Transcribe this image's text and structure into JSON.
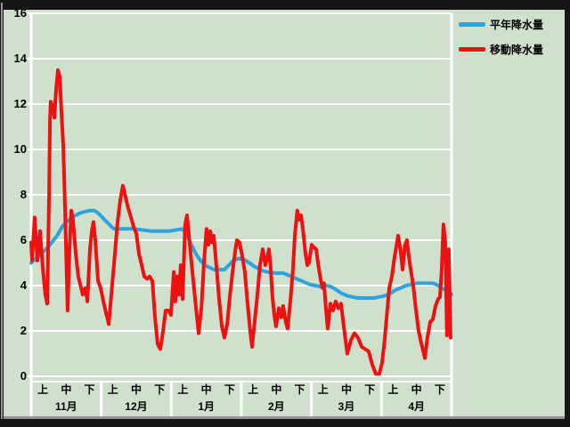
{
  "chart_data": {
    "type": "line",
    "title": "",
    "xlabel": "",
    "ylabel": "",
    "ylim": [
      0,
      16
    ],
    "y_ticks": [
      0,
      2,
      4,
      6,
      8,
      10,
      12,
      14,
      16
    ],
    "grid": "horizontal-white",
    "legend_position": "top-right",
    "x_span_days": 181,
    "periods": [
      "上",
      "中",
      "下"
    ],
    "months": [
      {
        "label": "11月"
      },
      {
        "label": "12月"
      },
      {
        "label": "1月"
      },
      {
        "label": "2月"
      },
      {
        "label": "3月"
      },
      {
        "label": "4月"
      }
    ],
    "series": [
      {
        "name": "平年降水量",
        "color": "#2fa3db",
        "points": [
          [
            0,
            5.0
          ],
          [
            1.9,
            5.2
          ],
          [
            3.8,
            5.35
          ],
          [
            5.8,
            5.55
          ],
          [
            7.7,
            5.75
          ],
          [
            9.6,
            6.0
          ],
          [
            11.5,
            6.25
          ],
          [
            13.4,
            6.6
          ],
          [
            15.3,
            6.8
          ],
          [
            17.3,
            7.0
          ],
          [
            19.2,
            7.1
          ],
          [
            21.1,
            7.2
          ],
          [
            23,
            7.25
          ],
          [
            24.9,
            7.3
          ],
          [
            27.2,
            7.3
          ],
          [
            28.8,
            7.2
          ],
          [
            30.7,
            7.0
          ],
          [
            32.6,
            6.8
          ],
          [
            34.5,
            6.6
          ],
          [
            35.7,
            6.5
          ],
          [
            40.3,
            6.5
          ],
          [
            44.1,
            6.5
          ],
          [
            47.9,
            6.45
          ],
          [
            51.8,
            6.4
          ],
          [
            55.6,
            6.4
          ],
          [
            59.4,
            6.4
          ],
          [
            62.5,
            6.45
          ],
          [
            65.2,
            6.5
          ],
          [
            67.1,
            6.2
          ],
          [
            69,
            5.8
          ],
          [
            70.9,
            5.4
          ],
          [
            72.9,
            5.1
          ],
          [
            74.8,
            4.9
          ],
          [
            76.7,
            4.8
          ],
          [
            78.6,
            4.7
          ],
          [
            80.9,
            4.7
          ],
          [
            83.2,
            4.7
          ],
          [
            85.1,
            4.9
          ],
          [
            87,
            5.1
          ],
          [
            89.3,
            5.2
          ],
          [
            91.6,
            5.15
          ],
          [
            93.9,
            5.0
          ],
          [
            95.9,
            4.85
          ],
          [
            97.8,
            4.75
          ],
          [
            99.7,
            4.65
          ],
          [
            101.6,
            4.6
          ],
          [
            105.4,
            4.55
          ],
          [
            108.5,
            4.55
          ],
          [
            110.8,
            4.45
          ],
          [
            113.1,
            4.35
          ],
          [
            115.4,
            4.25
          ],
          [
            117.7,
            4.15
          ],
          [
            120,
            4.05
          ],
          [
            122.3,
            4.0
          ],
          [
            124.6,
            3.95
          ],
          [
            126.9,
            4.0
          ],
          [
            129.2,
            3.95
          ],
          [
            131.5,
            3.8
          ],
          [
            133.8,
            3.65
          ],
          [
            136.1,
            3.55
          ],
          [
            138.4,
            3.5
          ],
          [
            140.7,
            3.45
          ],
          [
            145.3,
            3.45
          ],
          [
            147.6,
            3.45
          ],
          [
            149.9,
            3.5
          ],
          [
            152.2,
            3.55
          ],
          [
            154.5,
            3.65
          ],
          [
            156.8,
            3.8
          ],
          [
            159.1,
            3.9
          ],
          [
            161.4,
            4.0
          ],
          [
            163.7,
            4.05
          ],
          [
            166,
            4.1
          ],
          [
            170.6,
            4.1
          ],
          [
            172.9,
            4.1
          ],
          [
            174.4,
            4.05
          ],
          [
            176,
            3.95
          ],
          [
            177.5,
            3.85
          ],
          [
            179,
            3.75
          ],
          [
            180.6,
            3.65
          ],
          [
            181,
            3.6
          ]
        ]
      },
      {
        "name": "移動降水量",
        "color": "#ee1111",
        "points": [
          [
            0,
            5.9
          ],
          [
            0.4,
            5.1
          ],
          [
            1.5,
            7.0
          ],
          [
            2.7,
            5.1
          ],
          [
            3.8,
            6.4
          ],
          [
            5,
            4.8
          ],
          [
            6.1,
            3.6
          ],
          [
            6.9,
            3.2
          ],
          [
            7.7,
            8.0
          ],
          [
            8.1,
            11.3
          ],
          [
            8.4,
            12.1
          ],
          [
            9.2,
            11.9
          ],
          [
            10,
            11.4
          ],
          [
            10.7,
            12.6
          ],
          [
            11.5,
            13.5
          ],
          [
            12.3,
            13.2
          ],
          [
            13,
            11.7
          ],
          [
            13.8,
            10.2
          ],
          [
            14.6,
            7.3
          ],
          [
            15.7,
            2.9
          ],
          [
            16.5,
            5.6
          ],
          [
            17.3,
            7.3
          ],
          [
            18,
            6.9
          ],
          [
            19.2,
            5.4
          ],
          [
            20.3,
            4.4
          ],
          [
            21.5,
            3.9
          ],
          [
            22.2,
            3.6
          ],
          [
            23.4,
            3.9
          ],
          [
            24.2,
            3.3
          ],
          [
            25.3,
            5.6
          ],
          [
            26.1,
            6.4
          ],
          [
            26.8,
            6.8
          ],
          [
            27.6,
            6.0
          ],
          [
            28.8,
            4.2
          ],
          [
            29.9,
            3.9
          ],
          [
            31.1,
            3.3
          ],
          [
            32.2,
            2.8
          ],
          [
            33.4,
            2.3
          ],
          [
            34.5,
            3.6
          ],
          [
            35.7,
            5.0
          ],
          [
            37.2,
            6.8
          ],
          [
            38.4,
            7.8
          ],
          [
            39.5,
            8.4
          ],
          [
            40.6,
            7.9
          ],
          [
            41.8,
            7.4
          ],
          [
            43,
            7.0
          ],
          [
            44.1,
            6.6
          ],
          [
            45.3,
            6.3
          ],
          [
            46.4,
            5.4
          ],
          [
            47.6,
            4.9
          ],
          [
            48.7,
            4.4
          ],
          [
            49.9,
            4.3
          ],
          [
            51,
            4.4
          ],
          [
            52.2,
            4.2
          ],
          [
            53.3,
            2.6
          ],
          [
            54.5,
            1.4
          ],
          [
            55.6,
            1.2
          ],
          [
            56.8,
            2.0
          ],
          [
            57.9,
            2.9
          ],
          [
            59.1,
            2.9
          ],
          [
            60.2,
            2.7
          ],
          [
            61.4,
            4.6
          ],
          [
            62.1,
            3.3
          ],
          [
            62.9,
            4.4
          ],
          [
            63.7,
            3.6
          ],
          [
            64.4,
            4.9
          ],
          [
            65.2,
            3.4
          ],
          [
            66.3,
            6.7
          ],
          [
            67.1,
            7.1
          ],
          [
            68.3,
            5.8
          ],
          [
            69.4,
            4.6
          ],
          [
            70.6,
            3.4
          ],
          [
            72.1,
            1.9
          ],
          [
            73.3,
            3.0
          ],
          [
            74.4,
            5.0
          ],
          [
            75.5,
            6.5
          ],
          [
            76.3,
            5.8
          ],
          [
            77.1,
            6.4
          ],
          [
            77.8,
            5.9
          ],
          [
            78.6,
            6.2
          ],
          [
            79.8,
            4.8
          ],
          [
            80.9,
            3.4
          ],
          [
            82.1,
            2.2
          ],
          [
            83.2,
            1.7
          ],
          [
            84.4,
            2.3
          ],
          [
            85.5,
            3.5
          ],
          [
            86.7,
            4.6
          ],
          [
            87.8,
            5.5
          ],
          [
            88.6,
            6.0
          ],
          [
            89.7,
            5.9
          ],
          [
            90.9,
            5.3
          ],
          [
            92,
            4.6
          ],
          [
            93.2,
            3.2
          ],
          [
            94.3,
            2.0
          ],
          [
            95.1,
            1.3
          ],
          [
            96.2,
            2.4
          ],
          [
            97.4,
            3.6
          ],
          [
            98.5,
            4.9
          ],
          [
            99.7,
            5.6
          ],
          [
            100.8,
            4.9
          ],
          [
            101.6,
            5.2
          ],
          [
            102.4,
            5.6
          ],
          [
            103.1,
            4.8
          ],
          [
            103.9,
            3.5
          ],
          [
            104.7,
            2.7
          ],
          [
            105.4,
            2.2
          ],
          [
            106.6,
            3.0
          ],
          [
            107.7,
            2.6
          ],
          [
            108.5,
            3.1
          ],
          [
            109.6,
            2.4
          ],
          [
            110.4,
            2.1
          ],
          [
            111.6,
            3.3
          ],
          [
            112.7,
            4.7
          ],
          [
            113.5,
            6.2
          ],
          [
            114.6,
            7.3
          ],
          [
            115.4,
            6.9
          ],
          [
            116.2,
            7.1
          ],
          [
            116.9,
            6.6
          ],
          [
            118.1,
            5.4
          ],
          [
            118.9,
            4.9
          ],
          [
            119.6,
            5.0
          ],
          [
            120.8,
            5.8
          ],
          [
            121.5,
            5.7
          ],
          [
            122.7,
            5.6
          ],
          [
            123.8,
            4.8
          ],
          [
            124.6,
            4.3
          ],
          [
            125.4,
            3.9
          ],
          [
            126.1,
            4.1
          ],
          [
            126.9,
            3.0
          ],
          [
            127.7,
            2.1
          ],
          [
            128.8,
            3.2
          ],
          [
            130,
            2.9
          ],
          [
            131.1,
            3.3
          ],
          [
            132.3,
            3.0
          ],
          [
            133.4,
            3.2
          ],
          [
            134.6,
            2.2
          ],
          [
            136.1,
            1.0
          ],
          [
            137.7,
            1.6
          ],
          [
            139.2,
            1.9
          ],
          [
            140.7,
            1.7
          ],
          [
            142.3,
            1.3
          ],
          [
            143.8,
            1.2
          ],
          [
            145.3,
            1.1
          ],
          [
            146.9,
            0.5
          ],
          [
            148.4,
            0.1
          ],
          [
            149.9,
            0.1
          ],
          [
            151.1,
            0.6
          ],
          [
            152.2,
            1.6
          ],
          [
            153.4,
            3.0
          ],
          [
            154.2,
            3.9
          ],
          [
            155.3,
            4.4
          ],
          [
            156.4,
            5.2
          ],
          [
            158,
            6.2
          ],
          [
            159.1,
            5.5
          ],
          [
            159.9,
            4.7
          ],
          [
            161,
            5.8
          ],
          [
            161.8,
            6.0
          ],
          [
            162.6,
            5.3
          ],
          [
            163.3,
            4.8
          ],
          [
            164.5,
            4.0
          ],
          [
            165.6,
            3.0
          ],
          [
            166.8,
            2.0
          ],
          [
            167.9,
            1.5
          ],
          [
            169.5,
            0.8
          ],
          [
            170.6,
            1.7
          ],
          [
            171.8,
            2.4
          ],
          [
            172.9,
            2.5
          ],
          [
            174.1,
            3.1
          ],
          [
            175.2,
            3.4
          ],
          [
            176,
            3.5
          ],
          [
            176.7,
            4.6
          ],
          [
            177.5,
            6.7
          ],
          [
            178.3,
            5.9
          ],
          [
            179,
            1.8
          ],
          [
            179.8,
            5.6
          ],
          [
            180.6,
            1.7
          ]
        ]
      }
    ]
  }
}
